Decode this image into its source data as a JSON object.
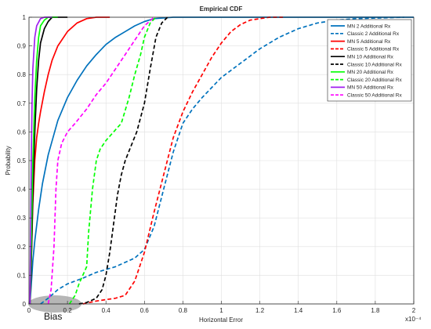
{
  "chart_data": {
    "type": "line",
    "title": "Empirical CDF",
    "xlabel": "Horizontal Error",
    "ylabel": "Probability",
    "x_scale_label": "x10⁻⁴",
    "xlim": [
      0,
      2.0
    ],
    "ylim": [
      0,
      1
    ],
    "xticks": [
      "0",
      "0.2",
      "0.4",
      "0.6",
      "0.8",
      "1",
      "1.2",
      "1.4",
      "1.6",
      "1.8",
      "2"
    ],
    "yticks": [
      "0",
      "0.1",
      "0.2",
      "0.3",
      "0.4",
      "0.5",
      "0.6",
      "0.7",
      "0.8",
      "0.9",
      "1"
    ],
    "grid": true,
    "legend_position": "top-right",
    "annotation": {
      "text": "Bias",
      "x": 0.09,
      "y": 0.0
    },
    "series": [
      {
        "name": "MN 2 Additional Rx",
        "color": "#0072BD",
        "dashed": false,
        "points": [
          [
            0.005,
            0
          ],
          [
            0.01,
            0.05
          ],
          [
            0.02,
            0.15
          ],
          [
            0.03,
            0.22
          ],
          [
            0.05,
            0.33
          ],
          [
            0.07,
            0.42
          ],
          [
            0.1,
            0.52
          ],
          [
            0.15,
            0.64
          ],
          [
            0.2,
            0.72
          ],
          [
            0.25,
            0.78
          ],
          [
            0.3,
            0.83
          ],
          [
            0.35,
            0.87
          ],
          [
            0.4,
            0.905
          ],
          [
            0.45,
            0.93
          ],
          [
            0.5,
            0.95
          ],
          [
            0.55,
            0.97
          ],
          [
            0.6,
            0.985
          ],
          [
            0.65,
            0.995
          ],
          [
            0.75,
            1
          ],
          [
            2.0,
            1
          ]
        ]
      },
      {
        "name": "Classic 2 Additional Rx",
        "color": "#0072BD",
        "dashed": true,
        "points": [
          [
            0.06,
            0
          ],
          [
            0.1,
            0.02
          ],
          [
            0.15,
            0.05
          ],
          [
            0.2,
            0.07
          ],
          [
            0.28,
            0.09
          ],
          [
            0.35,
            0.11
          ],
          [
            0.45,
            0.13
          ],
          [
            0.55,
            0.16
          ],
          [
            0.6,
            0.19
          ],
          [
            0.65,
            0.27
          ],
          [
            0.7,
            0.4
          ],
          [
            0.75,
            0.53
          ],
          [
            0.8,
            0.63
          ],
          [
            0.85,
            0.68
          ],
          [
            0.9,
            0.72
          ],
          [
            1.0,
            0.79
          ],
          [
            1.1,
            0.84
          ],
          [
            1.2,
            0.89
          ],
          [
            1.3,
            0.93
          ],
          [
            1.4,
            0.96
          ],
          [
            1.5,
            0.98
          ],
          [
            1.6,
            0.99
          ],
          [
            1.7,
            0.995
          ],
          [
            1.95,
            1
          ]
        ]
      },
      {
        "name": "MN 5 Additional Rx",
        "color": "#FF0000",
        "dashed": false,
        "points": [
          [
            0.005,
            0
          ],
          [
            0.01,
            0.1
          ],
          [
            0.02,
            0.35
          ],
          [
            0.03,
            0.5
          ],
          [
            0.04,
            0.58
          ],
          [
            0.05,
            0.63
          ],
          [
            0.06,
            0.67
          ],
          [
            0.08,
            0.74
          ],
          [
            0.1,
            0.8
          ],
          [
            0.12,
            0.85
          ],
          [
            0.15,
            0.9
          ],
          [
            0.2,
            0.95
          ],
          [
            0.25,
            0.98
          ],
          [
            0.3,
            0.995
          ],
          [
            0.35,
            1
          ],
          [
            0.42,
            1
          ]
        ]
      },
      {
        "name": "Classic 5 Additional Rx",
        "color": "#FF0000",
        "dashed": true,
        "points": [
          [
            0.28,
            0
          ],
          [
            0.35,
            0.01
          ],
          [
            0.45,
            0.02
          ],
          [
            0.5,
            0.03
          ],
          [
            0.55,
            0.08
          ],
          [
            0.6,
            0.18
          ],
          [
            0.65,
            0.32
          ],
          [
            0.7,
            0.45
          ],
          [
            0.75,
            0.58
          ],
          [
            0.8,
            0.67
          ],
          [
            0.85,
            0.74
          ],
          [
            0.9,
            0.8
          ],
          [
            0.95,
            0.86
          ],
          [
            1.0,
            0.91
          ],
          [
            1.05,
            0.95
          ],
          [
            1.1,
            0.975
          ],
          [
            1.15,
            0.99
          ],
          [
            1.25,
            1
          ],
          [
            1.32,
            1
          ]
        ]
      },
      {
        "name": "MN 10 Additional Rx",
        "color": "#000000",
        "dashed": false,
        "points": [
          [
            0.005,
            0
          ],
          [
            0.01,
            0.1
          ],
          [
            0.02,
            0.38
          ],
          [
            0.03,
            0.6
          ],
          [
            0.04,
            0.75
          ],
          [
            0.05,
            0.85
          ],
          [
            0.06,
            0.91
          ],
          [
            0.08,
            0.96
          ],
          [
            0.1,
            0.985
          ],
          [
            0.12,
            1
          ],
          [
            0.2,
            1
          ]
        ]
      },
      {
        "name": "Classic 10 Additional Rx",
        "color": "#000000",
        "dashed": true,
        "points": [
          [
            0.26,
            0
          ],
          [
            0.3,
            0.005
          ],
          [
            0.35,
            0.02
          ],
          [
            0.38,
            0.05
          ],
          [
            0.4,
            0.1
          ],
          [
            0.42,
            0.18
          ],
          [
            0.44,
            0.28
          ],
          [
            0.46,
            0.38
          ],
          [
            0.48,
            0.45
          ],
          [
            0.5,
            0.5
          ],
          [
            0.53,
            0.55
          ],
          [
            0.56,
            0.6
          ],
          [
            0.6,
            0.7
          ],
          [
            0.63,
            0.82
          ],
          [
            0.66,
            0.93
          ],
          [
            0.69,
            0.98
          ],
          [
            0.72,
            1
          ]
        ]
      },
      {
        "name": "MN 20 Additional Rx",
        "color": "#00FF00",
        "dashed": false,
        "points": [
          [
            0.005,
            0
          ],
          [
            0.01,
            0.15
          ],
          [
            0.02,
            0.5
          ],
          [
            0.03,
            0.72
          ],
          [
            0.04,
            0.85
          ],
          [
            0.05,
            0.93
          ],
          [
            0.06,
            0.97
          ],
          [
            0.08,
            0.99
          ],
          [
            0.1,
            1
          ],
          [
            0.15,
            1
          ]
        ]
      },
      {
        "name": "Classic 20 Additional Rx",
        "color": "#00FF00",
        "dashed": true,
        "points": [
          [
            0.21,
            0
          ],
          [
            0.24,
            0.03
          ],
          [
            0.26,
            0.07
          ],
          [
            0.28,
            0.1
          ],
          [
            0.3,
            0.13
          ],
          [
            0.31,
            0.25
          ],
          [
            0.33,
            0.4
          ],
          [
            0.35,
            0.5
          ],
          [
            0.37,
            0.54
          ],
          [
            0.4,
            0.57
          ],
          [
            0.44,
            0.6
          ],
          [
            0.48,
            0.63
          ],
          [
            0.52,
            0.72
          ],
          [
            0.55,
            0.8
          ],
          [
            0.58,
            0.87
          ],
          [
            0.6,
            0.93
          ],
          [
            0.63,
            0.98
          ],
          [
            0.66,
            1
          ]
        ]
      },
      {
        "name": "MN 50 Additional Rx",
        "color": "#A020F0",
        "dashed": false,
        "points": [
          [
            0.005,
            0
          ],
          [
            0.008,
            0.2
          ],
          [
            0.012,
            0.5
          ],
          [
            0.016,
            0.7
          ],
          [
            0.02,
            0.82
          ],
          [
            0.03,
            0.93
          ],
          [
            0.04,
            0.97
          ],
          [
            0.06,
            0.995
          ],
          [
            0.08,
            1
          ],
          [
            0.12,
            1
          ]
        ]
      },
      {
        "name": "Classic 50 Additional Rx",
        "color": "#FF00FF",
        "dashed": true,
        "points": [
          [
            0.1,
            0
          ],
          [
            0.115,
            0.05
          ],
          [
            0.13,
            0.2
          ],
          [
            0.14,
            0.4
          ],
          [
            0.15,
            0.5
          ],
          [
            0.17,
            0.56
          ],
          [
            0.2,
            0.6
          ],
          [
            0.24,
            0.63
          ],
          [
            0.3,
            0.68
          ],
          [
            0.35,
            0.73
          ],
          [
            0.4,
            0.77
          ],
          [
            0.45,
            0.82
          ],
          [
            0.5,
            0.87
          ],
          [
            0.55,
            0.92
          ],
          [
            0.6,
            0.97
          ],
          [
            0.65,
            1
          ]
        ]
      }
    ]
  }
}
